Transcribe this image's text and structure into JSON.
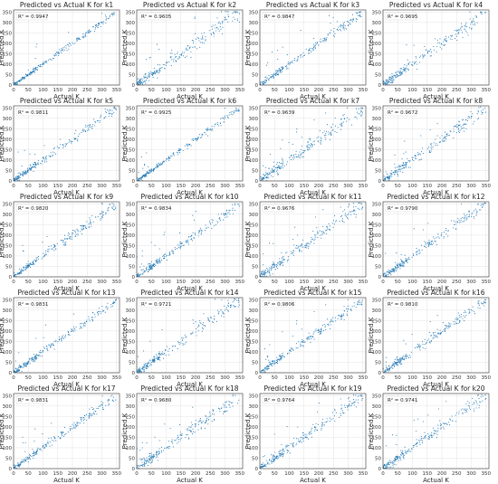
{
  "chart_data": {
    "type": "scatter",
    "xlabel": "Actual K",
    "ylabel": "Predicted K",
    "xlim": [
      0,
      360
    ],
    "ylim": [
      0,
      360
    ],
    "xticks": [
      0,
      50,
      100,
      150,
      200,
      250,
      300,
      350
    ],
    "yticks": [
      0,
      50,
      100,
      150,
      200,
      250,
      300,
      350
    ],
    "grid": true,
    "point_color": "#1f77b4",
    "annotation_placement": "top-left",
    "panels": [
      {
        "title": "Predicted vs Actual K for k1",
        "r2": "R² = 0.9947"
      },
      {
        "title": "Predicted vs Actual K for k2",
        "r2": "R² = 0.9605"
      },
      {
        "title": "Predicted vs Actual K for k3",
        "r2": "R² = 0.9847"
      },
      {
        "title": "Predicted vs Actual K for k4",
        "r2": "R² = 0.9695"
      },
      {
        "title": "Predicted vs Actual K for k5",
        "r2": "R² = 0.9811"
      },
      {
        "title": "Predicted vs Actual K for k6",
        "r2": "R² = 0.9925"
      },
      {
        "title": "Predicted vs Actual K for k7",
        "r2": "R² = 0.9639"
      },
      {
        "title": "Predicted vs Actual K for k8",
        "r2": "R² = 0.9672"
      },
      {
        "title": "Predicted vs Actual K for k9",
        "r2": "R² = 0.9820"
      },
      {
        "title": "Predicted vs Actual K for k10",
        "r2": "R² = 0.9834"
      },
      {
        "title": "Predicted vs Actual K for k11",
        "r2": "R² = 0.9676"
      },
      {
        "title": "Predicted vs Actual K for k12",
        "r2": "R² = 0.9790"
      },
      {
        "title": "Predicted vs Actual K for k13",
        "r2": "R² = 0.9831"
      },
      {
        "title": "Predicted vs Actual K for k14",
        "r2": "R² = 0.9721"
      },
      {
        "title": "Predicted vs Actual K for k15",
        "r2": "R² = 0.9806"
      },
      {
        "title": "Predicted vs Actual K for k16",
        "r2": "R² = 0.9810"
      },
      {
        "title": "Predicted vs Actual K for k17",
        "r2": "R² = 0.9831"
      },
      {
        "title": "Predicted vs Actual K for k18",
        "r2": "R² = 0.9680"
      },
      {
        "title": "Predicted vs Actual K for k19",
        "r2": "R² = 0.9764"
      },
      {
        "title": "Predicted vs Actual K for k20",
        "r2": "R² = 0.9741"
      }
    ]
  }
}
